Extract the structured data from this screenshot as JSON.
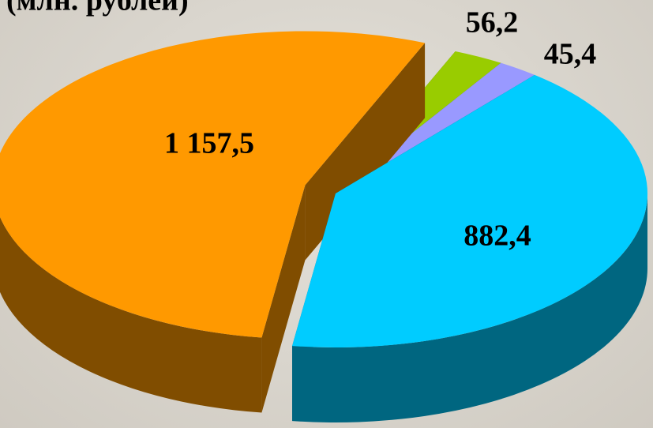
{
  "chart_data": {
    "type": "pie",
    "subtitle": "(млн. рублей)",
    "values": [
      1157.5,
      56.2,
      45.4,
      882.4
    ],
    "value_labels": [
      "1 157,5",
      "56,2",
      "45,4",
      "882,4"
    ],
    "colors": [
      "#ff9900",
      "#99cc00",
      "#9999ff",
      "#00ccff"
    ]
  }
}
